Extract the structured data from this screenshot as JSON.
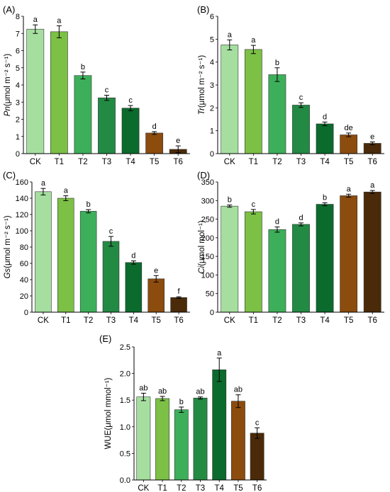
{
  "colors": {
    "CK": "#a6dea0",
    "T1": "#7cc046",
    "T2": "#3daf5a",
    "T3": "#238a44",
    "T4": "#0b6b2c",
    "T5": "#8c4c0e",
    "T6": "#4a2a08",
    "axis": "#000000",
    "bar_edge": "#333333"
  },
  "chart_data": [
    {
      "panel": "(A)",
      "type": "bar",
      "categories": [
        "CK",
        "T1",
        "T2",
        "T3",
        "T4",
        "T5",
        "T6"
      ],
      "values": [
        7.25,
        7.1,
        4.55,
        3.25,
        2.65,
        1.2,
        0.25
      ],
      "errors": [
        0.25,
        0.35,
        0.2,
        0.15,
        0.15,
        0.08,
        0.2
      ],
      "letters": [
        "a",
        "a",
        "b",
        "c",
        "c",
        "d",
        "e"
      ],
      "ylabel_italic": "Pn",
      "ylabel_unit": "(μmol m⁻² s⁻¹)",
      "ylim": [
        0,
        8
      ],
      "yticks": [
        0,
        1,
        2,
        3,
        4,
        5,
        6,
        7,
        8
      ],
      "ytick_labels": [
        "0",
        "1",
        "2",
        "3",
        "4",
        "5",
        "6",
        "7",
        "8"
      ]
    },
    {
      "panel": "(B)",
      "type": "bar",
      "categories": [
        "CK",
        "T1",
        "T2",
        "T3",
        "T4",
        "T5",
        "T6"
      ],
      "values": [
        4.75,
        4.55,
        3.45,
        2.12,
        1.3,
        0.82,
        0.45
      ],
      "errors": [
        0.22,
        0.18,
        0.3,
        0.1,
        0.08,
        0.08,
        0.06
      ],
      "letters": [
        "a",
        "a",
        "b",
        "c",
        "d",
        "de",
        "e"
      ],
      "ylabel_italic": "Tr",
      "ylabel_unit": "(μmol m⁻² s⁻¹)",
      "ylim": [
        0,
        6
      ],
      "yticks": [
        0,
        1,
        2,
        3,
        4,
        5,
        6
      ],
      "ytick_labels": [
        "0",
        "1",
        "2",
        "3",
        "4",
        "5",
        "6"
      ]
    },
    {
      "panel": "(C)",
      "type": "bar",
      "categories": [
        "CK",
        "T1",
        "T2",
        "T3",
        "T4",
        "T5",
        "T6"
      ],
      "values": [
        148,
        140,
        124,
        87,
        61,
        41,
        18
      ],
      "errors": [
        4,
        3,
        2,
        6,
        2,
        4,
        1
      ],
      "letters": [
        "a",
        "a",
        "b",
        "c",
        "d",
        "e",
        "f"
      ],
      "ylabel_italic": "Gs",
      "ylabel_unit": "(μmol m⁻² s⁻¹)",
      "ylim": [
        0,
        160
      ],
      "yticks": [
        0,
        20,
        40,
        60,
        80,
        100,
        120,
        140,
        160
      ],
      "ytick_labels": [
        "0",
        "20",
        "40",
        "60",
        "80",
        "100",
        "120",
        "140",
        "160"
      ]
    },
    {
      "panel": "(D)",
      "type": "bar",
      "categories": [
        "CK",
        "T1",
        "T2",
        "T3",
        "T4",
        "T5",
        "T6"
      ],
      "values": [
        285,
        270,
        222,
        236,
        290,
        313,
        323
      ],
      "errors": [
        3,
        6,
        7,
        4,
        4,
        4,
        4
      ],
      "letters": [
        "b",
        "c",
        "d",
        "d",
        "b",
        "a",
        "a"
      ],
      "ylabel_italic": "Ci",
      "ylabel_unit": "(μmol mol⁻¹)",
      "ylim": [
        0,
        350
      ],
      "yticks": [
        0,
        50,
        100,
        150,
        200,
        250,
        300,
        350
      ],
      "ytick_labels": [
        "0",
        "50",
        "100",
        "150",
        "200",
        "250",
        "300",
        "350"
      ]
    },
    {
      "panel": "(E)",
      "type": "bar",
      "categories": [
        "CK",
        "T1",
        "T2",
        "T3",
        "T4",
        "T5",
        "T6"
      ],
      "values": [
        1.56,
        1.53,
        1.32,
        1.54,
        2.07,
        1.48,
        0.88
      ],
      "errors": [
        0.07,
        0.04,
        0.05,
        0.02,
        0.22,
        0.12,
        0.1
      ],
      "letters": [
        "ab",
        "ab",
        "b",
        "ab",
        "a",
        "ab",
        "c"
      ],
      "ylabel_italic": "",
      "ylabel_unit": "WUE(μmol mmol⁻¹)",
      "ylim": [
        0,
        2.5
      ],
      "yticks": [
        0,
        0.5,
        1.0,
        1.5,
        2.0,
        2.5
      ],
      "ytick_labels": [
        "0.0",
        "0.5",
        "1.0",
        "1.5",
        "2.0",
        "2.5"
      ]
    }
  ]
}
